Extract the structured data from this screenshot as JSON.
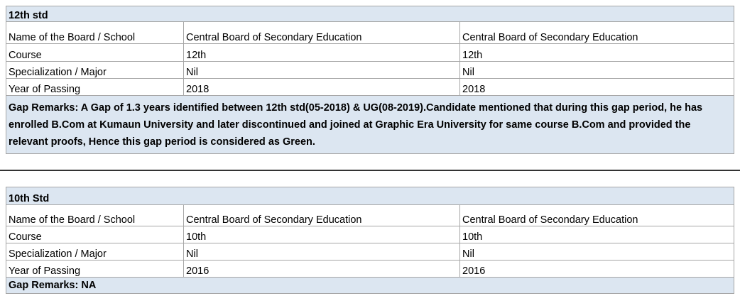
{
  "sections": [
    {
      "title": "12th std",
      "rows": [
        [
          "Name of the Board / School",
          "Central Board of Secondary Education",
          "Central Board of Secondary Education"
        ],
        [
          "Course",
          "12th",
          "12th"
        ],
        [
          "Specialization / Major",
          "Nil",
          "Nil"
        ],
        [
          "Year of Passing",
          "2018",
          "2018"
        ]
      ],
      "remarks": "Gap Remarks: A Gap of 1.3 years identified between 12th std(05-2018) & UG(08-2019).Candidate mentioned that during this gap period, he has enrolled B.Com at Kumaun University and later discontinued and joined at Graphic Era University for same course B.Com and provided the relevant proofs, Hence this gap period is considered as Green."
    },
    {
      "title": "10th Std",
      "rows": [
        [
          "Name of the Board / School",
          "Central Board of Secondary Education",
          "Central Board of Secondary Education"
        ],
        [
          "Course",
          "10th",
          "10th"
        ],
        [
          "Specialization / Major",
          "Nil",
          "Nil"
        ],
        [
          "Year of Passing",
          "2016",
          "2016"
        ]
      ],
      "remarks": "Gap Remarks: NA"
    }
  ]
}
